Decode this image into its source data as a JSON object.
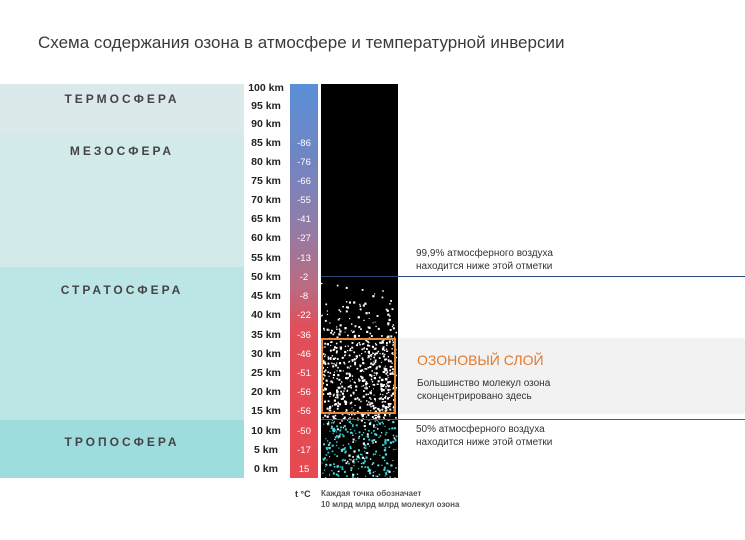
{
  "title": "Схема содержания озона в атмосфере и температурной инверсии",
  "layers": {
    "thermosphere": "ТЕРМОСФЕРА",
    "mesosphere": "МЕЗОСФЕРА",
    "stratosphere": "СТРАТОСФЕРА",
    "troposphere": "ТРОПОСФЕРА"
  },
  "altitudes": [
    "100 km",
    "95 km",
    "90 km",
    "85 km",
    "80 km",
    "75 km",
    "70 km",
    "65 km",
    "60 km",
    "55 km",
    "50 km",
    "45 km",
    "40 km",
    "35 km",
    "30 km",
    "25 km",
    "20 km",
    "15 km",
    "10 km",
    "5 km",
    "0 km"
  ],
  "temperatures": [
    "-86",
    "-76",
    "-66",
    "-55",
    "-41",
    "-27",
    "-13",
    "-2",
    "-8",
    "-22",
    "-36",
    "-46",
    "-51",
    "-56",
    "-56",
    "-50",
    "-17",
    "15"
  ],
  "notes": {
    "air_999": [
      "99,9% атмосферного воздуха",
      "находится ниже этой отметки"
    ],
    "ozone_layer_title": "ОЗОНОВЫЙ СЛОЙ",
    "ozone_layer_desc": [
      "Большинство молекул озона",
      "сконцентрировано здесь"
    ],
    "air_50": [
      "50% атмосферного воздуха",
      "находится ниже этой отметки"
    ]
  },
  "legend": {
    "temp_unit": "t °C",
    "dot_note": [
      "Каждая точка обозначает",
      "10 млрд млрд млрд молекул озона"
    ]
  }
}
